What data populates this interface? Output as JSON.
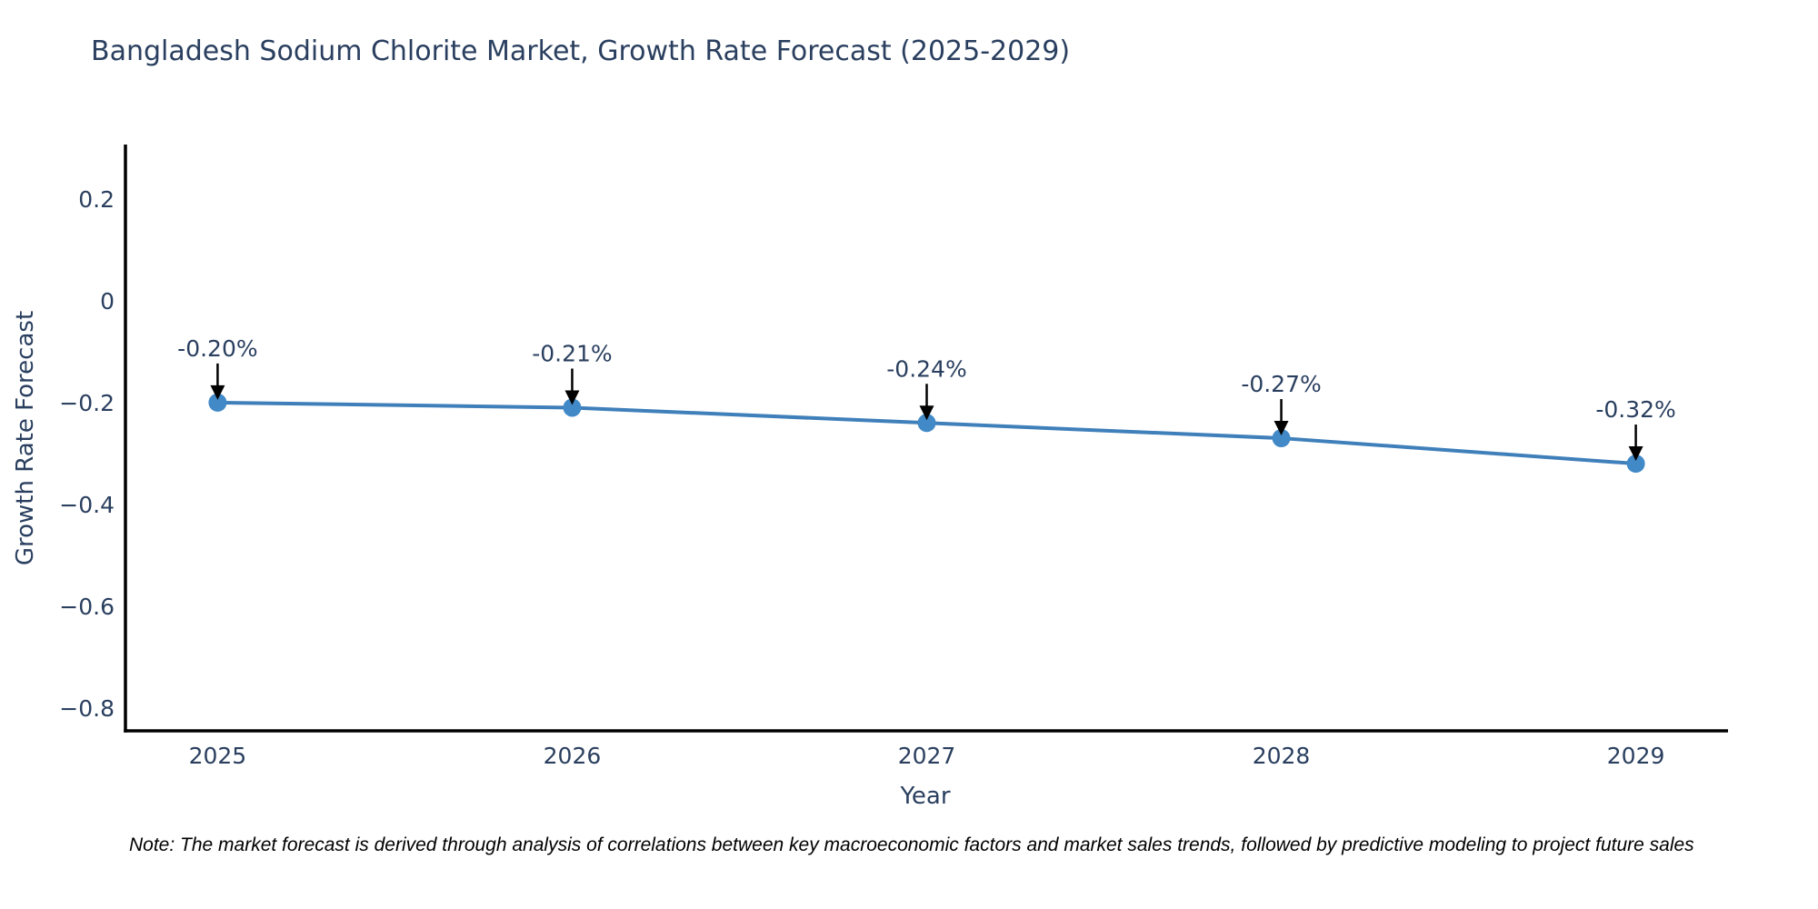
{
  "title": "Bangladesh Sodium Chlorite Market, Growth Rate Forecast (2025-2029)",
  "note": "Note: The market forecast is derived through analysis of correlations between key macroeconomic factors and market sales trends, followed by predictive modeling to project future sales",
  "chart_data": {
    "type": "line",
    "title": "Bangladesh Sodium Chlorite Market, Growth Rate Forecast (2025-2029)",
    "series_name": "Growth Rate Forecast",
    "x": [
      2025,
      2026,
      2027,
      2028,
      2029
    ],
    "y": [
      -0.2,
      -0.21,
      -0.24,
      -0.27,
      -0.32
    ],
    "point_labels": [
      "-0.20%",
      "-0.21%",
      "-0.24%",
      "-0.27%",
      "-0.32%"
    ],
    "xlabel": "Year",
    "ylabel": "Growth Rate Forecast",
    "xtick_labels": [
      "2025",
      "2026",
      "2027",
      "2028",
      "2029"
    ],
    "ytick_values": [
      0.2,
      0,
      -0.2,
      -0.4,
      -0.6,
      -0.8
    ],
    "ytick_labels": [
      "0.2",
      "0",
      "−0.2",
      "−0.4",
      "−0.6",
      "−0.8"
    ],
    "xlim": [
      2024.74,
      2029.26
    ],
    "ylim": [
      -0.845,
      0.307
    ],
    "grid": false,
    "legend": "none",
    "colors": {
      "line": "#3f7fba",
      "marker": "#4189c7",
      "axis": "#000000",
      "text": "#2a3f5f",
      "annotation_text": "#2a3f5f",
      "annotation_arrow": "#000000",
      "note_text": "#000000",
      "background": "#ffffff"
    }
  }
}
